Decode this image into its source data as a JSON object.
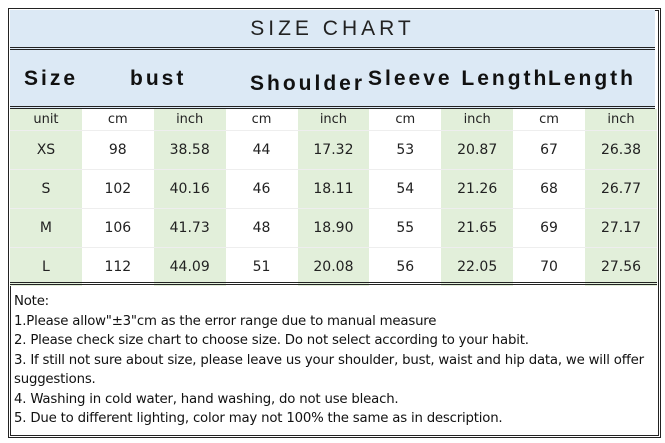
{
  "title": "SIZE CHART",
  "headers": {
    "size": "Size",
    "bust": "bust",
    "shoulder": "Shoulder",
    "sleeve": "Sleeve Length",
    "length": "Length"
  },
  "unit_row": [
    "unit",
    "cm",
    "inch",
    "cm",
    "inch",
    "cm",
    "inch",
    "cm",
    "inch"
  ],
  "rows": [
    [
      "XS",
      "98",
      "38.58",
      "44",
      "17.32",
      "53",
      "20.87",
      "67",
      "26.38"
    ],
    [
      "S",
      "102",
      "40.16",
      "46",
      "18.11",
      "54",
      "21.26",
      "68",
      "26.77"
    ],
    [
      "M",
      "106",
      "41.73",
      "48",
      "18.90",
      "55",
      "21.65",
      "69",
      "27.17"
    ],
    [
      "L",
      "112",
      "44.09",
      "51",
      "20.08",
      "56",
      "22.05",
      "70",
      "27.56"
    ]
  ],
  "notes": [
    "Note:",
    "1.Please allow\"±3\"cm as the error range due to manual measure",
    "2. Please check size chart to choose size. Do not select according to your habit.",
    "3. If still not sure about size, please leave us your shoulder, bust, waist and hip data, we will offer",
    "suggestions.",
    "4. Washing in cold water, hand washing, do not use bleach.",
    "5. Due to different lighting, color may not 100% the same as in description."
  ],
  "colors": {
    "header_bg": "#dce9f5",
    "alt_column_bg": "#e2efda"
  }
}
